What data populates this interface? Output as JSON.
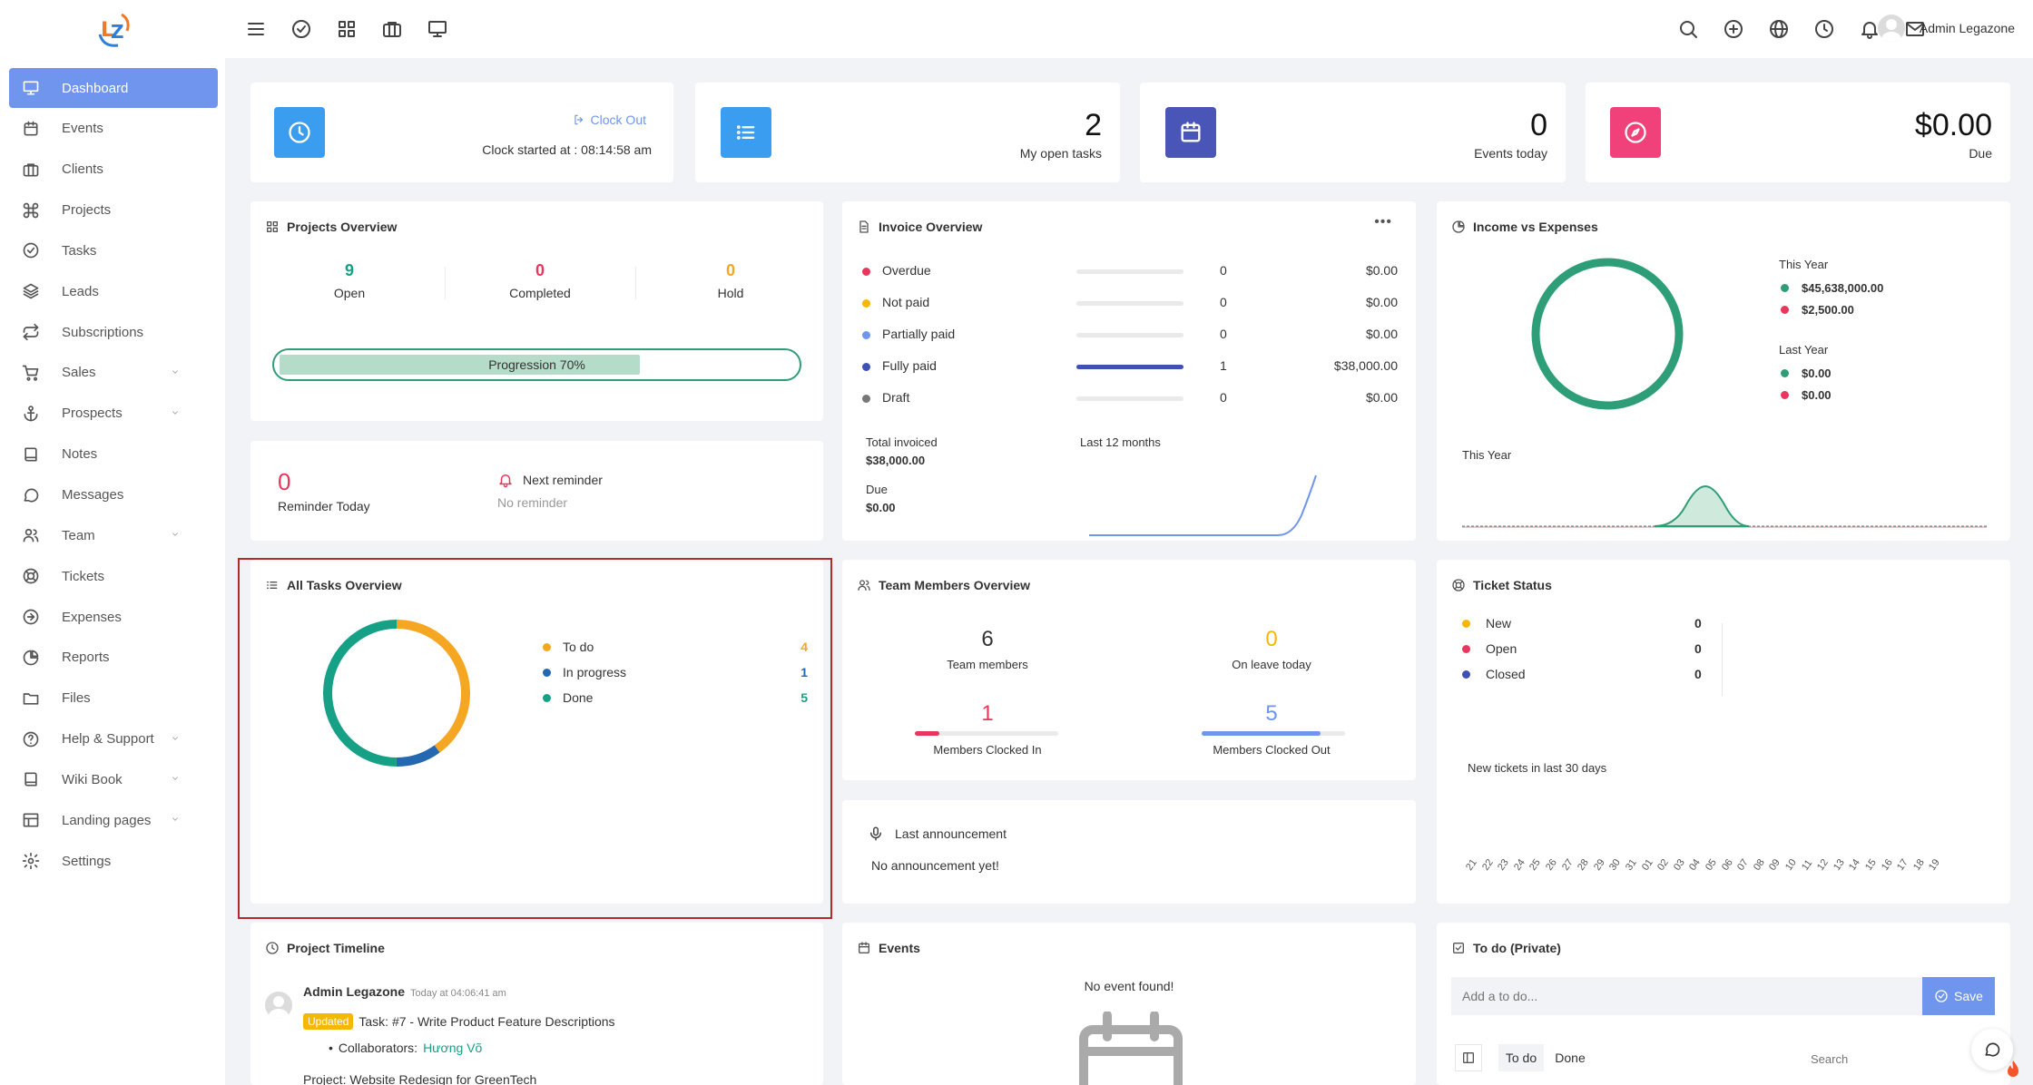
{
  "header": {
    "user_name": "Admin Legazone",
    "left_icons": [
      "menu-icon",
      "check-circle-icon",
      "grid-icon",
      "briefcase-icon",
      "monitor-icon"
    ],
    "right_icons": [
      "search-icon",
      "plus-circle-icon",
      "globe-icon",
      "clock-icon",
      "bell-icon",
      "mail-icon"
    ]
  },
  "sidebar": {
    "items": [
      {
        "label": "Dashboard",
        "icon": "monitor-icon",
        "active": true
      },
      {
        "label": "Events",
        "icon": "calendar-icon"
      },
      {
        "label": "Clients",
        "icon": "briefcase-icon"
      },
      {
        "label": "Projects",
        "icon": "command-icon"
      },
      {
        "label": "Tasks",
        "icon": "check-circle-icon"
      },
      {
        "label": "Leads",
        "icon": "layers-icon"
      },
      {
        "label": "Subscriptions",
        "icon": "repeat-icon"
      },
      {
        "label": "Sales",
        "icon": "cart-icon",
        "expandable": true
      },
      {
        "label": "Prospects",
        "icon": "anchor-icon",
        "expandable": true
      },
      {
        "label": "Notes",
        "icon": "book-icon"
      },
      {
        "label": "Messages",
        "icon": "message-icon"
      },
      {
        "label": "Team",
        "icon": "users-icon",
        "expandable": true
      },
      {
        "label": "Tickets",
        "icon": "lifebuoy-icon"
      },
      {
        "label": "Expenses",
        "icon": "arrow-right-circle-icon"
      },
      {
        "label": "Reports",
        "icon": "pie-chart-icon"
      },
      {
        "label": "Files",
        "icon": "folder-icon"
      },
      {
        "label": "Help & Support",
        "icon": "help-circle-icon",
        "expandable": true
      },
      {
        "label": "Wiki Book",
        "icon": "book-icon",
        "expandable": true
      },
      {
        "label": "Landing pages",
        "icon": "layout-icon",
        "expandable": true
      },
      {
        "label": "Settings",
        "icon": "settings-icon"
      }
    ]
  },
  "tiles": {
    "clock": {
      "action": "Clock Out",
      "started": "Clock started at : 08:14:58 am",
      "color": "#3b9df0"
    },
    "tasks": {
      "value": "2",
      "label": "My open tasks",
      "color": "#3b9df0"
    },
    "events": {
      "value": "0",
      "label": "Events today",
      "color": "#4a55b8"
    },
    "due": {
      "value": "$0.00",
      "label": "Due",
      "color": "#f0417a"
    }
  },
  "projects_overview": {
    "title": "Projects Overview",
    "stats": [
      {
        "value": "9",
        "label": "Open",
        "color": "#16a085"
      },
      {
        "value": "0",
        "label": "Completed",
        "color": "#e8365d"
      },
      {
        "value": "0",
        "label": "Hold",
        "color": "#f5a623"
      }
    ],
    "progress_label": "Progression 70%",
    "progress": 0.7
  },
  "reminder": {
    "count": "0",
    "count_label": "Reminder Today",
    "next_label": "Next reminder",
    "next_value": "No reminder"
  },
  "invoice_overview": {
    "title": "Invoice Overview",
    "menu": "•••",
    "rows": [
      {
        "label": "Overdue",
        "count": "0",
        "amount": "$0.00",
        "color": "#e8365d",
        "fill": 0
      },
      {
        "label": "Not paid",
        "count": "0",
        "amount": "$0.00",
        "color": "#f5b800",
        "fill": 0
      },
      {
        "label": "Partially paid",
        "count": "0",
        "amount": "$0.00",
        "color": "#6f95ee",
        "fill": 0
      },
      {
        "label": "Fully paid",
        "count": "1",
        "amount": "$38,000.00",
        "color": "#3f51b5",
        "fill": 1
      },
      {
        "label": "Draft",
        "count": "0",
        "amount": "$0.00",
        "color": "#777777",
        "fill": 0
      }
    ],
    "total_label": "Total invoiced",
    "total_value": "$38,000.00",
    "due_label": "Due",
    "due_value": "$0.00",
    "sparkline_label": "Last 12 months"
  },
  "income_expenses": {
    "title": "Income vs Expenses",
    "this_year_label": "This Year",
    "this_year_income": "$45,638,000.00",
    "this_year_expense": "$2,500.00",
    "last_year_label": "Last Year",
    "last_year_income": "$0.00",
    "last_year_expense": "$0.00",
    "chart_label": "This Year",
    "income_color": "#2e9e78",
    "expense_color": "#e8365d"
  },
  "all_tasks": {
    "title": "All Tasks Overview",
    "items": [
      {
        "label": "To do",
        "value": "4",
        "color": "#f5a623"
      },
      {
        "label": "In progress",
        "value": "1",
        "color": "#2368b0"
      },
      {
        "label": "Done",
        "value": "5",
        "color": "#16a085"
      }
    ]
  },
  "team_overview": {
    "title": "Team Members Overview",
    "members_value": "6",
    "members_label": "Team members",
    "leave_value": "0",
    "leave_label": "On leave today",
    "clocked_in_value": "1",
    "clocked_in_label": "Members Clocked In",
    "clocked_in_fill": 0.17,
    "clocked_out_value": "5",
    "clocked_out_label": "Members Clocked Out",
    "clocked_out_fill": 0.83
  },
  "announcement": {
    "title": "Last announcement",
    "text": "No announcement yet!"
  },
  "ticket_status": {
    "title": "Ticket Status",
    "rows": [
      {
        "label": "New",
        "value": "0",
        "color": "#f5b800"
      },
      {
        "label": "Open",
        "value": "0",
        "color": "#e8365d"
      },
      {
        "label": "Closed",
        "value": "0",
        "color": "#3f51b5"
      }
    ],
    "chart_label": "New tickets in last 30 days",
    "days": [
      "21",
      "22",
      "23",
      "24",
      "25",
      "26",
      "27",
      "28",
      "29",
      "30",
      "31",
      "01",
      "02",
      "03",
      "04",
      "05",
      "06",
      "07",
      "08",
      "09",
      "10",
      "11",
      "12",
      "13",
      "14",
      "15",
      "16",
      "17",
      "18",
      "19"
    ]
  },
  "project_timeline": {
    "title": "Project Timeline",
    "author": "Admin Legazone",
    "time": "Today at 04:06:41 am",
    "badge": "Updated",
    "task": "Task: #7 - Write Product Feature Descriptions",
    "collaborators_label": "Collaborators:",
    "collaborator": "Hương Võ",
    "project": "Project: Website Redesign for GreenTech"
  },
  "events_panel": {
    "title": "Events",
    "empty": "No event found!"
  },
  "todo": {
    "title": "To do (Private)",
    "placeholder": "Add a to do...",
    "save": "Save",
    "tab_todo": "To do",
    "tab_done": "Done",
    "search_placeholder": "Search"
  }
}
